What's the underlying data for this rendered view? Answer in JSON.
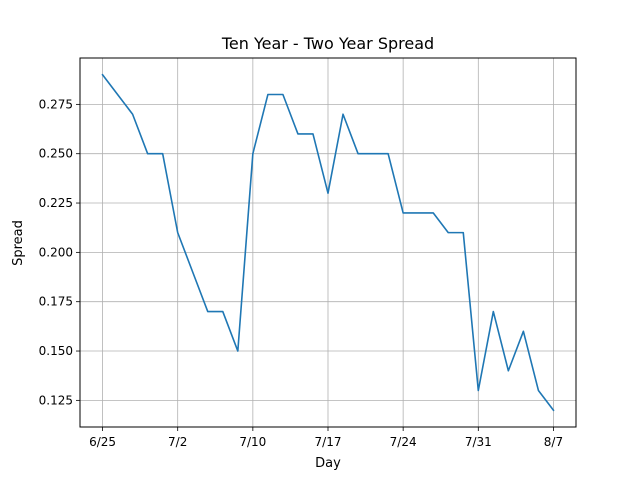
{
  "chart_data": {
    "type": "line",
    "title": "Ten Year - Two Year Spread",
    "xlabel": "Day",
    "ylabel": "Spread",
    "grid": true,
    "x_tick_labels": [
      "6/25",
      "7/2",
      "7/10",
      "7/17",
      "7/24",
      "7/31",
      "8/7"
    ],
    "x_tick_indices": [
      0,
      5,
      10,
      15,
      20,
      25,
      30
    ],
    "y_ticks": [
      0.125,
      0.15,
      0.175,
      0.2,
      0.225,
      0.25,
      0.275
    ],
    "y_tick_labels": [
      "0.125",
      "0.150",
      "0.175",
      "0.200",
      "0.225",
      "0.250",
      "0.275"
    ],
    "ylim": [
      0.1115,
      0.2985
    ],
    "xlim": [
      -1.5,
      31.5
    ],
    "line_color": "#1f77b4",
    "series": [
      {
        "values": [
          0.29,
          0.28,
          0.27,
          0.25,
          0.25,
          0.21,
          0.19,
          0.17,
          0.17,
          0.15,
          0.25,
          0.28,
          0.28,
          0.26,
          0.26,
          0.23,
          0.27,
          0.25,
          0.25,
          0.25,
          0.22,
          0.22,
          0.22,
          0.21,
          0.21,
          0.13,
          0.17,
          0.14,
          0.16,
          0.13,
          0.12
        ]
      }
    ]
  }
}
